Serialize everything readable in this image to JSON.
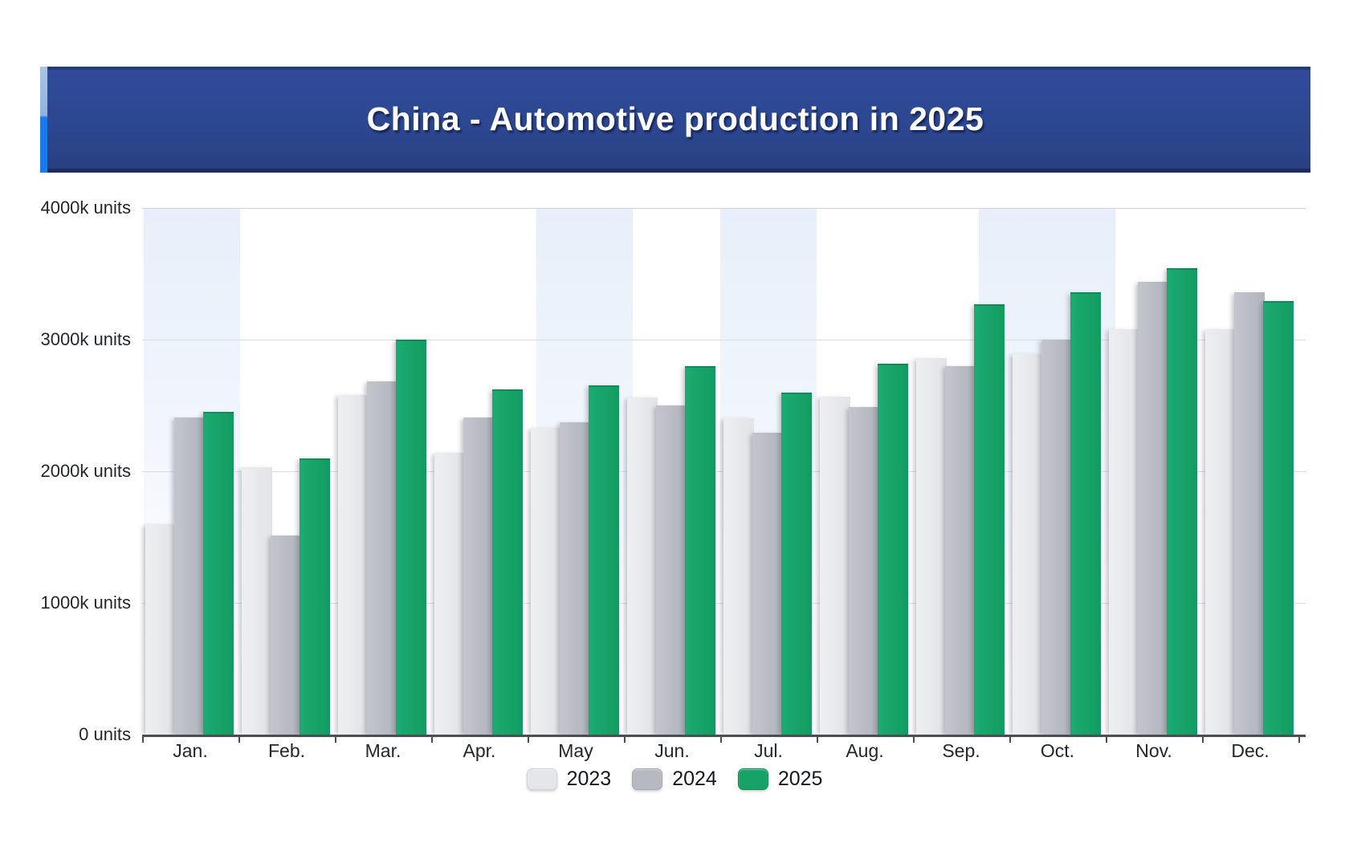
{
  "header": {
    "title": "China - Automotive production in 2025",
    "banner_color": "#2c4790",
    "banner_top_edge": "#223a7c",
    "banner_bottom_edge": "#1b2d5f",
    "accent_top_color": "#8fb4e0",
    "accent_bottom_color": "#1b7ae9",
    "title_color": "#ffffff"
  },
  "chart_data": {
    "type": "bar",
    "title": "China - Automotive production in 2025",
    "unit": "k units",
    "categories": [
      "Jan.",
      "Feb.",
      "Mar.",
      "Apr.",
      "May",
      "Jun.",
      "Jul.",
      "Aug.",
      "Sep.",
      "Oct.",
      "Nov.",
      "Dec."
    ],
    "series": [
      {
        "name": "2023",
        "color": "#e4e6e9",
        "values": [
          1600,
          2030,
          2580,
          2140,
          2330,
          2560,
          2400,
          2570,
          2860,
          2890,
          3080,
          3080
        ]
      },
      {
        "name": "2024",
        "color": "#b6b9c0",
        "values": [
          2410,
          1510,
          2680,
          2410,
          2370,
          2500,
          2290,
          2490,
          2800,
          3000,
          3440,
          3360
        ]
      },
      {
        "name": "2025",
        "color": "#17a268",
        "values": [
          2450,
          2100,
          3000,
          2620,
          2650,
          2800,
          2600,
          2820,
          3270,
          3360,
          3540,
          3290
        ]
      }
    ],
    "y_tick_labels": [
      "0 units",
      "1000k units",
      "2000k units",
      "3000k units",
      "4000k units"
    ],
    "ylim": [
      0,
      4000
    ],
    "grid": true,
    "legend_position": "bottom",
    "legend_labels": [
      "2023",
      "2024",
      "2025"
    ],
    "grid_color": "#d9dce1",
    "axis_color": "#4b4d54",
    "label_color": "#23262b"
  }
}
